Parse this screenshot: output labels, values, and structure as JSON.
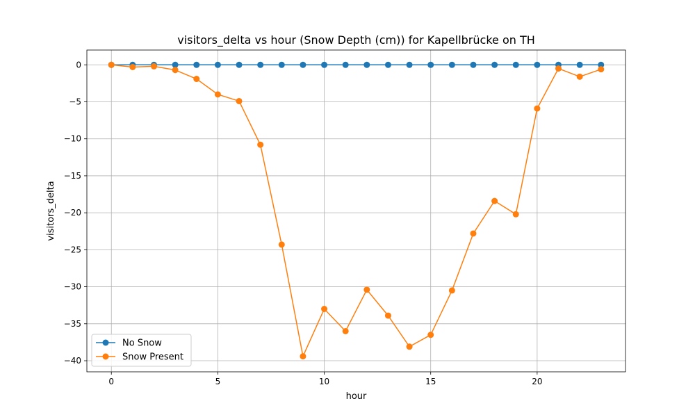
{
  "chart_data": {
    "type": "line",
    "title": "visitors_delta vs hour (Snow Depth (cm)) for Kapellbrücke on TH",
    "xlabel": "hour",
    "ylabel": "visitors_delta",
    "xlim": [
      -1.15,
      24.15
    ],
    "ylim": [
      -41.5,
      2.0
    ],
    "xticks": [
      0,
      5,
      10,
      15,
      20
    ],
    "yticks": [
      0,
      -5,
      -10,
      -15,
      -20,
      -25,
      -30,
      -35,
      -40
    ],
    "grid": true,
    "legend_position": "lower-left",
    "x": [
      0,
      1,
      2,
      3,
      4,
      5,
      6,
      7,
      8,
      9,
      10,
      11,
      12,
      13,
      14,
      15,
      16,
      17,
      18,
      19,
      20,
      21,
      22,
      23
    ],
    "series": [
      {
        "name": "No Snow",
        "color": "#1f77b4",
        "values": [
          0,
          0,
          0,
          0,
          0,
          0,
          0,
          0,
          0,
          0,
          0,
          0,
          0,
          0,
          0,
          0,
          0,
          0,
          0,
          0,
          0,
          0,
          0,
          0
        ]
      },
      {
        "name": "Snow Present",
        "color": "#ff7f0e",
        "values": [
          0.0,
          -0.3,
          -0.2,
          -0.7,
          -1.9,
          -4.0,
          -4.9,
          -10.8,
          -24.3,
          -39.4,
          -33.0,
          -36.0,
          -30.4,
          -33.9,
          -38.1,
          -36.5,
          -30.5,
          -22.8,
          -18.4,
          -20.2,
          -5.9,
          -0.5,
          -1.6,
          -0.6
        ]
      }
    ]
  }
}
